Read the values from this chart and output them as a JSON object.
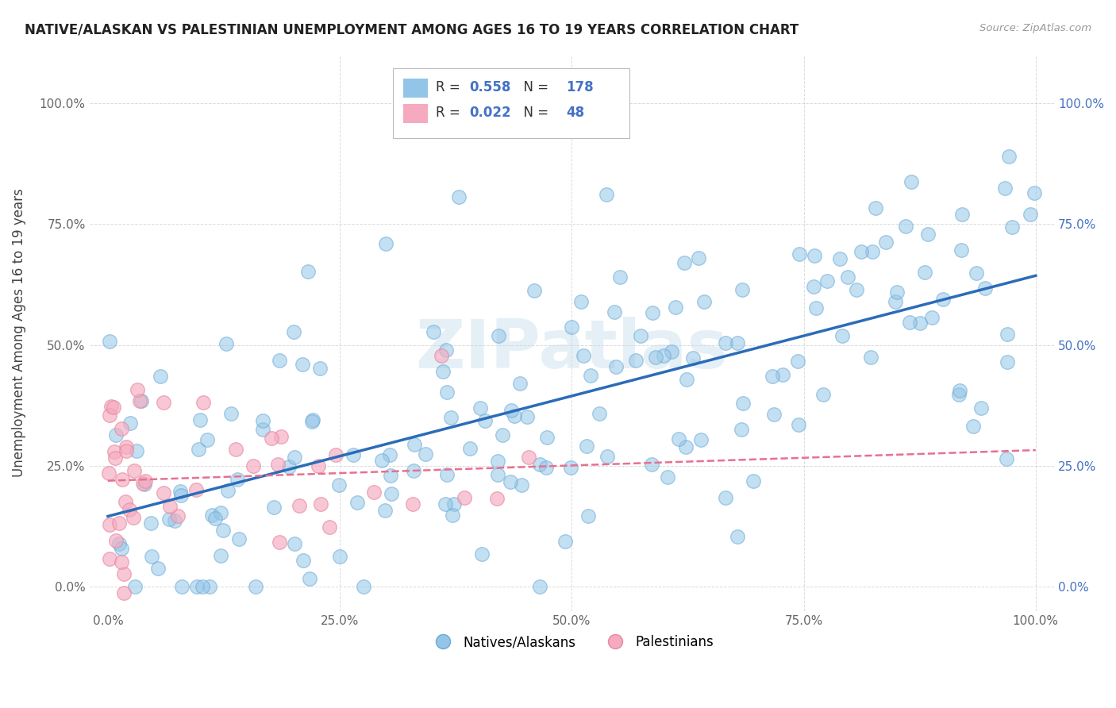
{
  "title": "NATIVE/ALASKAN VS PALESTINIAN UNEMPLOYMENT AMONG AGES 16 TO 19 YEARS CORRELATION CHART",
  "source": "Source: ZipAtlas.com",
  "ylabel": "Unemployment Among Ages 16 to 19 years",
  "xlim": [
    -0.02,
    1.02
  ],
  "ylim": [
    -0.05,
    1.1
  ],
  "xticks": [
    0.0,
    0.25,
    0.5,
    0.75,
    1.0
  ],
  "yticks": [
    0.0,
    0.25,
    0.5,
    0.75,
    1.0
  ],
  "xticklabels": [
    "0.0%",
    "25.0%",
    "50.0%",
    "75.0%",
    "100.0%"
  ],
  "yticklabels": [
    "0.0%",
    "25.0%",
    "50.0%",
    "75.0%",
    "100.0%"
  ],
  "blue_color": "#92C5E8",
  "pink_color": "#F5AABF",
  "blue_edge_color": "#6AAAD4",
  "pink_edge_color": "#E888A0",
  "blue_line_color": "#2B6CB8",
  "pink_line_color": "#E87090",
  "blue_num_color": "#4472c4",
  "R_blue": 0.558,
  "N_blue": 178,
  "R_pink": 0.022,
  "N_pink": 48,
  "legend_label_blue": "Natives/Alaskans",
  "legend_label_pink": "Palestinians",
  "watermark": "ZIPatlas",
  "background_color": "#ffffff",
  "grid_color": "#cccccc",
  "title_color": "#222222",
  "axis_label_color": "#444444",
  "tick_label_color": "#666666",
  "right_tick_color": "#4472c4",
  "seed_blue": 15,
  "seed_pink": 7
}
